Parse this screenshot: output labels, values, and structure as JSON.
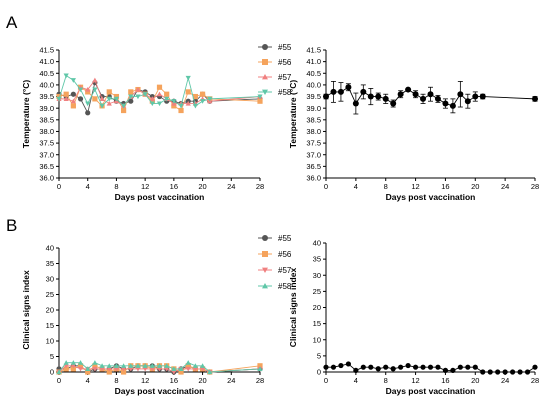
{
  "panel_labels": {
    "a": "A",
    "b": "B"
  },
  "chart_data": [
    {
      "id": "A-left",
      "type": "line",
      "xlabel": "Days post vaccination",
      "ylabel": "Temperature (°C)",
      "xlim": [
        0,
        28
      ],
      "ylim": [
        36.0,
        41.5
      ],
      "xticks": [
        0,
        4,
        8,
        12,
        16,
        20,
        24,
        28
      ],
      "yticks": [
        36.0,
        36.5,
        37.0,
        37.5,
        38.0,
        38.5,
        39.0,
        39.5,
        40.0,
        40.5,
        41.0,
        41.5
      ],
      "ytick_decimals": 1,
      "legend": "top-right",
      "series": [
        {
          "name": "#55",
          "color": "#555555",
          "marker": "circle",
          "x": [
            0,
            1,
            2,
            3,
            4,
            5,
            6,
            7,
            8,
            9,
            10,
            11,
            12,
            13,
            14,
            15,
            16,
            17,
            18,
            19,
            20,
            21,
            28
          ],
          "y": [
            39.6,
            39.5,
            39.6,
            39.4,
            38.8,
            40.1,
            39.5,
            39.5,
            39.3,
            39.2,
            39.3,
            39.8,
            39.7,
            39.5,
            39.5,
            39.3,
            39.3,
            39.2,
            39.3,
            39.3,
            39.6,
            39.3,
            39.4
          ]
        },
        {
          "name": "#56",
          "color": "#f5a35c",
          "marker": "square",
          "x": [
            0,
            1,
            2,
            3,
            4,
            5,
            6,
            7,
            8,
            9,
            10,
            11,
            12,
            13,
            14,
            15,
            16,
            17,
            18,
            19,
            20,
            21,
            28
          ],
          "y": [
            39.5,
            39.6,
            39.1,
            39.9,
            39.7,
            39.4,
            39.1,
            39.7,
            39.5,
            38.9,
            39.7,
            39.8,
            39.6,
            39.3,
            39.9,
            39.6,
            39.1,
            38.9,
            39.7,
            39.5,
            39.6,
            39.4,
            39.3
          ]
        },
        {
          "name": "#57",
          "color": "#f08080",
          "marker": "triangle-up",
          "x": [
            0,
            1,
            2,
            3,
            4,
            5,
            6,
            7,
            8,
            9,
            10,
            11,
            12,
            13,
            14,
            15,
            16,
            17,
            18,
            19,
            20,
            21,
            28
          ],
          "y": [
            39.4,
            39.4,
            39.3,
            39.9,
            39.8,
            40.2,
            39.4,
            39.2,
            39.3,
            39.1,
            39.5,
            39.8,
            39.6,
            39.4,
            39.6,
            39.4,
            39.2,
            39.2,
            39.2,
            39.2,
            39.4,
            39.3,
            39.5
          ]
        },
        {
          "name": "#58",
          "color": "#5fc7a8",
          "marker": "triangle-down",
          "x": [
            0,
            1,
            2,
            3,
            4,
            5,
            6,
            7,
            8,
            9,
            10,
            11,
            12,
            13,
            14,
            15,
            16,
            17,
            18,
            19,
            20,
            21,
            28
          ],
          "y": [
            39.4,
            40.4,
            40.2,
            39.8,
            39.2,
            39.8,
            39.1,
            39.4,
            39.4,
            39.1,
            39.5,
            39.5,
            39.6,
            39.2,
            39.2,
            39.4,
            39.3,
            39.1,
            40.3,
            39.1,
            39.3,
            39.4,
            39.5
          ]
        }
      ]
    },
    {
      "id": "A-right",
      "type": "line",
      "xlabel": "Days post vaccination",
      "ylabel": "Temperature (°C)",
      "xlim": [
        0,
        28
      ],
      "ylim": [
        36.0,
        41.5
      ],
      "xticks": [
        0,
        4,
        8,
        12,
        16,
        20,
        24,
        28
      ],
      "yticks": [
        36.0,
        36.5,
        37.0,
        37.5,
        38.0,
        38.5,
        39.0,
        39.5,
        40.0,
        40.5,
        41.0,
        41.5
      ],
      "ytick_decimals": 1,
      "series": [
        {
          "name": "",
          "color": "#000000",
          "marker": "circle",
          "x": [
            0,
            1,
            2,
            3,
            4,
            5,
            6,
            7,
            8,
            9,
            10,
            11,
            12,
            13,
            14,
            15,
            16,
            17,
            18,
            19,
            20,
            21,
            28
          ],
          "y": [
            39.5,
            39.7,
            39.7,
            39.9,
            39.2,
            39.7,
            39.5,
            39.5,
            39.4,
            39.2,
            39.6,
            39.8,
            39.6,
            39.4,
            39.6,
            39.4,
            39.2,
            39.1,
            39.6,
            39.3,
            39.5,
            39.5,
            39.4
          ],
          "err": [
            0.1,
            0.45,
            0.4,
            0.15,
            0.45,
            0.3,
            0.35,
            0.15,
            0.2,
            0.15,
            0.15,
            0.05,
            0.15,
            0.2,
            0.3,
            0.15,
            0.2,
            0.3,
            0.55,
            0.3,
            0.2,
            0.1,
            0.1
          ]
        }
      ]
    },
    {
      "id": "B-left",
      "type": "line",
      "xlabel": "Days post vaccination",
      "ylabel": "Clinical signs index",
      "xlim": [
        0,
        28
      ],
      "ylim": [
        0,
        40
      ],
      "xticks": [
        0,
        4,
        8,
        12,
        16,
        20,
        24,
        28
      ],
      "yticks": [
        0,
        5,
        10,
        15,
        20,
        25,
        30,
        35,
        40
      ],
      "ytick_decimals": 0,
      "legend": "top-right",
      "series": [
        {
          "name": "#55",
          "color": "#555555",
          "marker": "circle",
          "x": [
            0,
            1,
            2,
            3,
            4,
            5,
            6,
            7,
            8,
            9,
            10,
            11,
            12,
            13,
            14,
            15,
            16,
            17,
            18,
            19,
            20,
            21,
            28
          ],
          "y": [
            1,
            1,
            2,
            2,
            0,
            1,
            1,
            1,
            2,
            1,
            1,
            2,
            2,
            2,
            1,
            1,
            0,
            1,
            2,
            1,
            1,
            0,
            1
          ]
        },
        {
          "name": "#56",
          "color": "#f5a35c",
          "marker": "square",
          "x": [
            0,
            1,
            2,
            3,
            4,
            5,
            6,
            7,
            8,
            9,
            10,
            11,
            12,
            13,
            14,
            15,
            16,
            17,
            18,
            19,
            20,
            21,
            28
          ],
          "y": [
            0,
            1,
            1,
            2,
            0,
            2,
            1,
            0,
            1,
            0,
            2,
            2,
            2,
            1,
            2,
            2,
            1,
            0,
            2,
            1,
            1,
            0,
            2
          ]
        },
        {
          "name": "#57",
          "color": "#f08080",
          "marker": "triangle-down",
          "x": [
            0,
            1,
            2,
            3,
            4,
            5,
            6,
            7,
            8,
            9,
            10,
            11,
            12,
            13,
            14,
            15,
            16,
            17,
            18,
            19,
            20,
            21,
            28
          ],
          "y": [
            0,
            2,
            2,
            1,
            1,
            1,
            1,
            1,
            1,
            1,
            1,
            1,
            1,
            1,
            1,
            1,
            0,
            1,
            1,
            1,
            1,
            0,
            1
          ]
        },
        {
          "name": "#58",
          "color": "#5fc7a8",
          "marker": "triangle-up",
          "x": [
            0,
            1,
            2,
            3,
            4,
            5,
            6,
            7,
            8,
            9,
            10,
            11,
            12,
            13,
            14,
            15,
            16,
            17,
            18,
            19,
            20,
            21,
            28
          ],
          "y": [
            0,
            3,
            3,
            3,
            1,
            3,
            2,
            2,
            2,
            2,
            2,
            2,
            2,
            2,
            2,
            2,
            1,
            1,
            3,
            2,
            2,
            0,
            1
          ]
        }
      ]
    },
    {
      "id": "B-right",
      "type": "line",
      "xlabel": "Days post vaccination",
      "ylabel": "Clinical signs index",
      "xlim": [
        0,
        28
      ],
      "ylim": [
        0,
        40
      ],
      "xticks": [
        0,
        4,
        8,
        12,
        16,
        20,
        24,
        28
      ],
      "yticks": [
        0,
        5,
        10,
        15,
        20,
        25,
        30,
        35,
        40
      ],
      "ytick_decimals": 0,
      "series": [
        {
          "name": "",
          "color": "#000000",
          "marker": "circle",
          "x": [
            0,
            1,
            2,
            3,
            4,
            5,
            6,
            7,
            8,
            9,
            10,
            11,
            12,
            13,
            14,
            15,
            16,
            17,
            18,
            19,
            20,
            21,
            22,
            23,
            24,
            25,
            26,
            27,
            28
          ],
          "y": [
            1.5,
            1.5,
            2,
            2.5,
            0.5,
            1.5,
            1.5,
            1,
            1.5,
            1,
            1.5,
            2,
            1.5,
            1.5,
            1.5,
            1.5,
            0.5,
            0.5,
            1.5,
            1.5,
            1.5,
            0,
            0,
            0,
            0,
            0,
            0,
            0,
            1.5
          ]
        }
      ]
    }
  ]
}
